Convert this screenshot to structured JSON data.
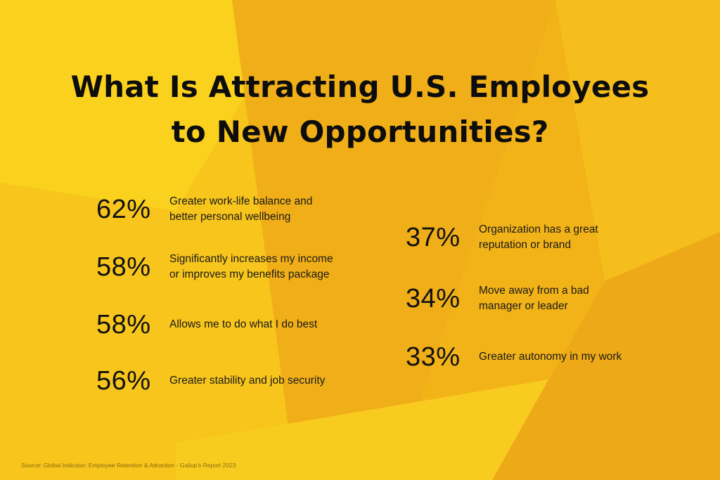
{
  "title_line1": "What Is Attracting U.S. Employees",
  "title_line2": "to New Opportunities?",
  "source": "Source: Global Indicator: Employee Retention & Attraction - Gallup's Report 2023",
  "colors": {
    "base": "#F2B318",
    "bright": "#FAD21E",
    "dark": "#EBA817",
    "text": "#111111"
  },
  "chart_data": {
    "type": "table",
    "title": "What Is Attracting U.S. Employees to New Opportunities?",
    "items": [
      {
        "percent": "62%",
        "value": 62,
        "label_line1": "Greater work-life balance and",
        "label_line2": "better personal wellbeing"
      },
      {
        "percent": "58%",
        "value": 58,
        "label_line1": "Significantly increases my income",
        "label_line2": "or improves my benefits package"
      },
      {
        "percent": "58%",
        "value": 58,
        "label_line1": "Allows me to do what I do best",
        "label_line2": ""
      },
      {
        "percent": "56%",
        "value": 56,
        "label_line1": "Greater stability and job security",
        "label_line2": ""
      },
      {
        "percent": "37%",
        "value": 37,
        "label_line1": "Organization has a great",
        "label_line2": "reputation or brand"
      },
      {
        "percent": "34%",
        "value": 34,
        "label_line1": "Move away from a bad",
        "label_line2": "manager or leader"
      },
      {
        "percent": "33%",
        "value": 33,
        "label_line1": "Greater autonomy in my work",
        "label_line2": ""
      }
    ]
  }
}
